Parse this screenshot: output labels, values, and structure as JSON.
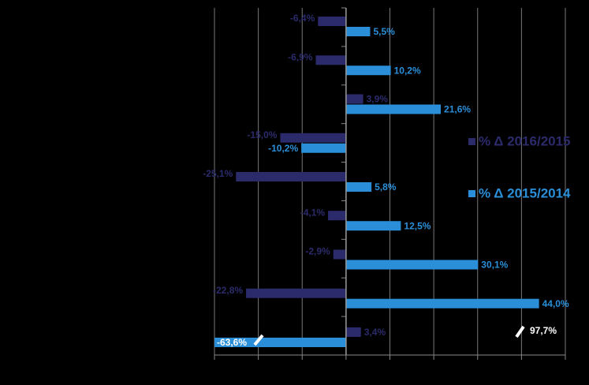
{
  "chart_data": {
    "type": "bar",
    "orientation": "horizontal",
    "series": [
      {
        "name": "% Δ 2016/2015",
        "color": "#2b2b6b",
        "values": [
          -6.4,
          -6.9,
          3.9,
          -15.0,
          -25.1,
          -4.1,
          -2.9,
          -22.8,
          3.4
        ],
        "value_labels": [
          "-6,4%",
          "-6,9%",
          "3,9%",
          "-15,0%",
          "-25,1%",
          "-4,1%",
          "-2,9%",
          "-22,8%",
          "3,4%"
        ]
      },
      {
        "name": "% Δ 2015/2014",
        "color": "#2a8fd8",
        "values": [
          5.5,
          10.2,
          21.6,
          -10.2,
          5.8,
          12.5,
          30.1,
          44.0,
          -63.6
        ],
        "value_labels": [
          "5,5%",
          "10,2%",
          "21,6%",
          "-10,2%",
          "5,8%",
          "12,5%",
          "30,1%",
          "44,0%",
          "-63,6%"
        ]
      }
    ],
    "annotations": [
      {
        "text": "97,7%",
        "value": 97.7
      }
    ],
    "xlim": [
      -30,
      50
    ],
    "xticks": [
      -30,
      -20,
      -10,
      0,
      10,
      20,
      30,
      40,
      50
    ],
    "grid": true
  }
}
